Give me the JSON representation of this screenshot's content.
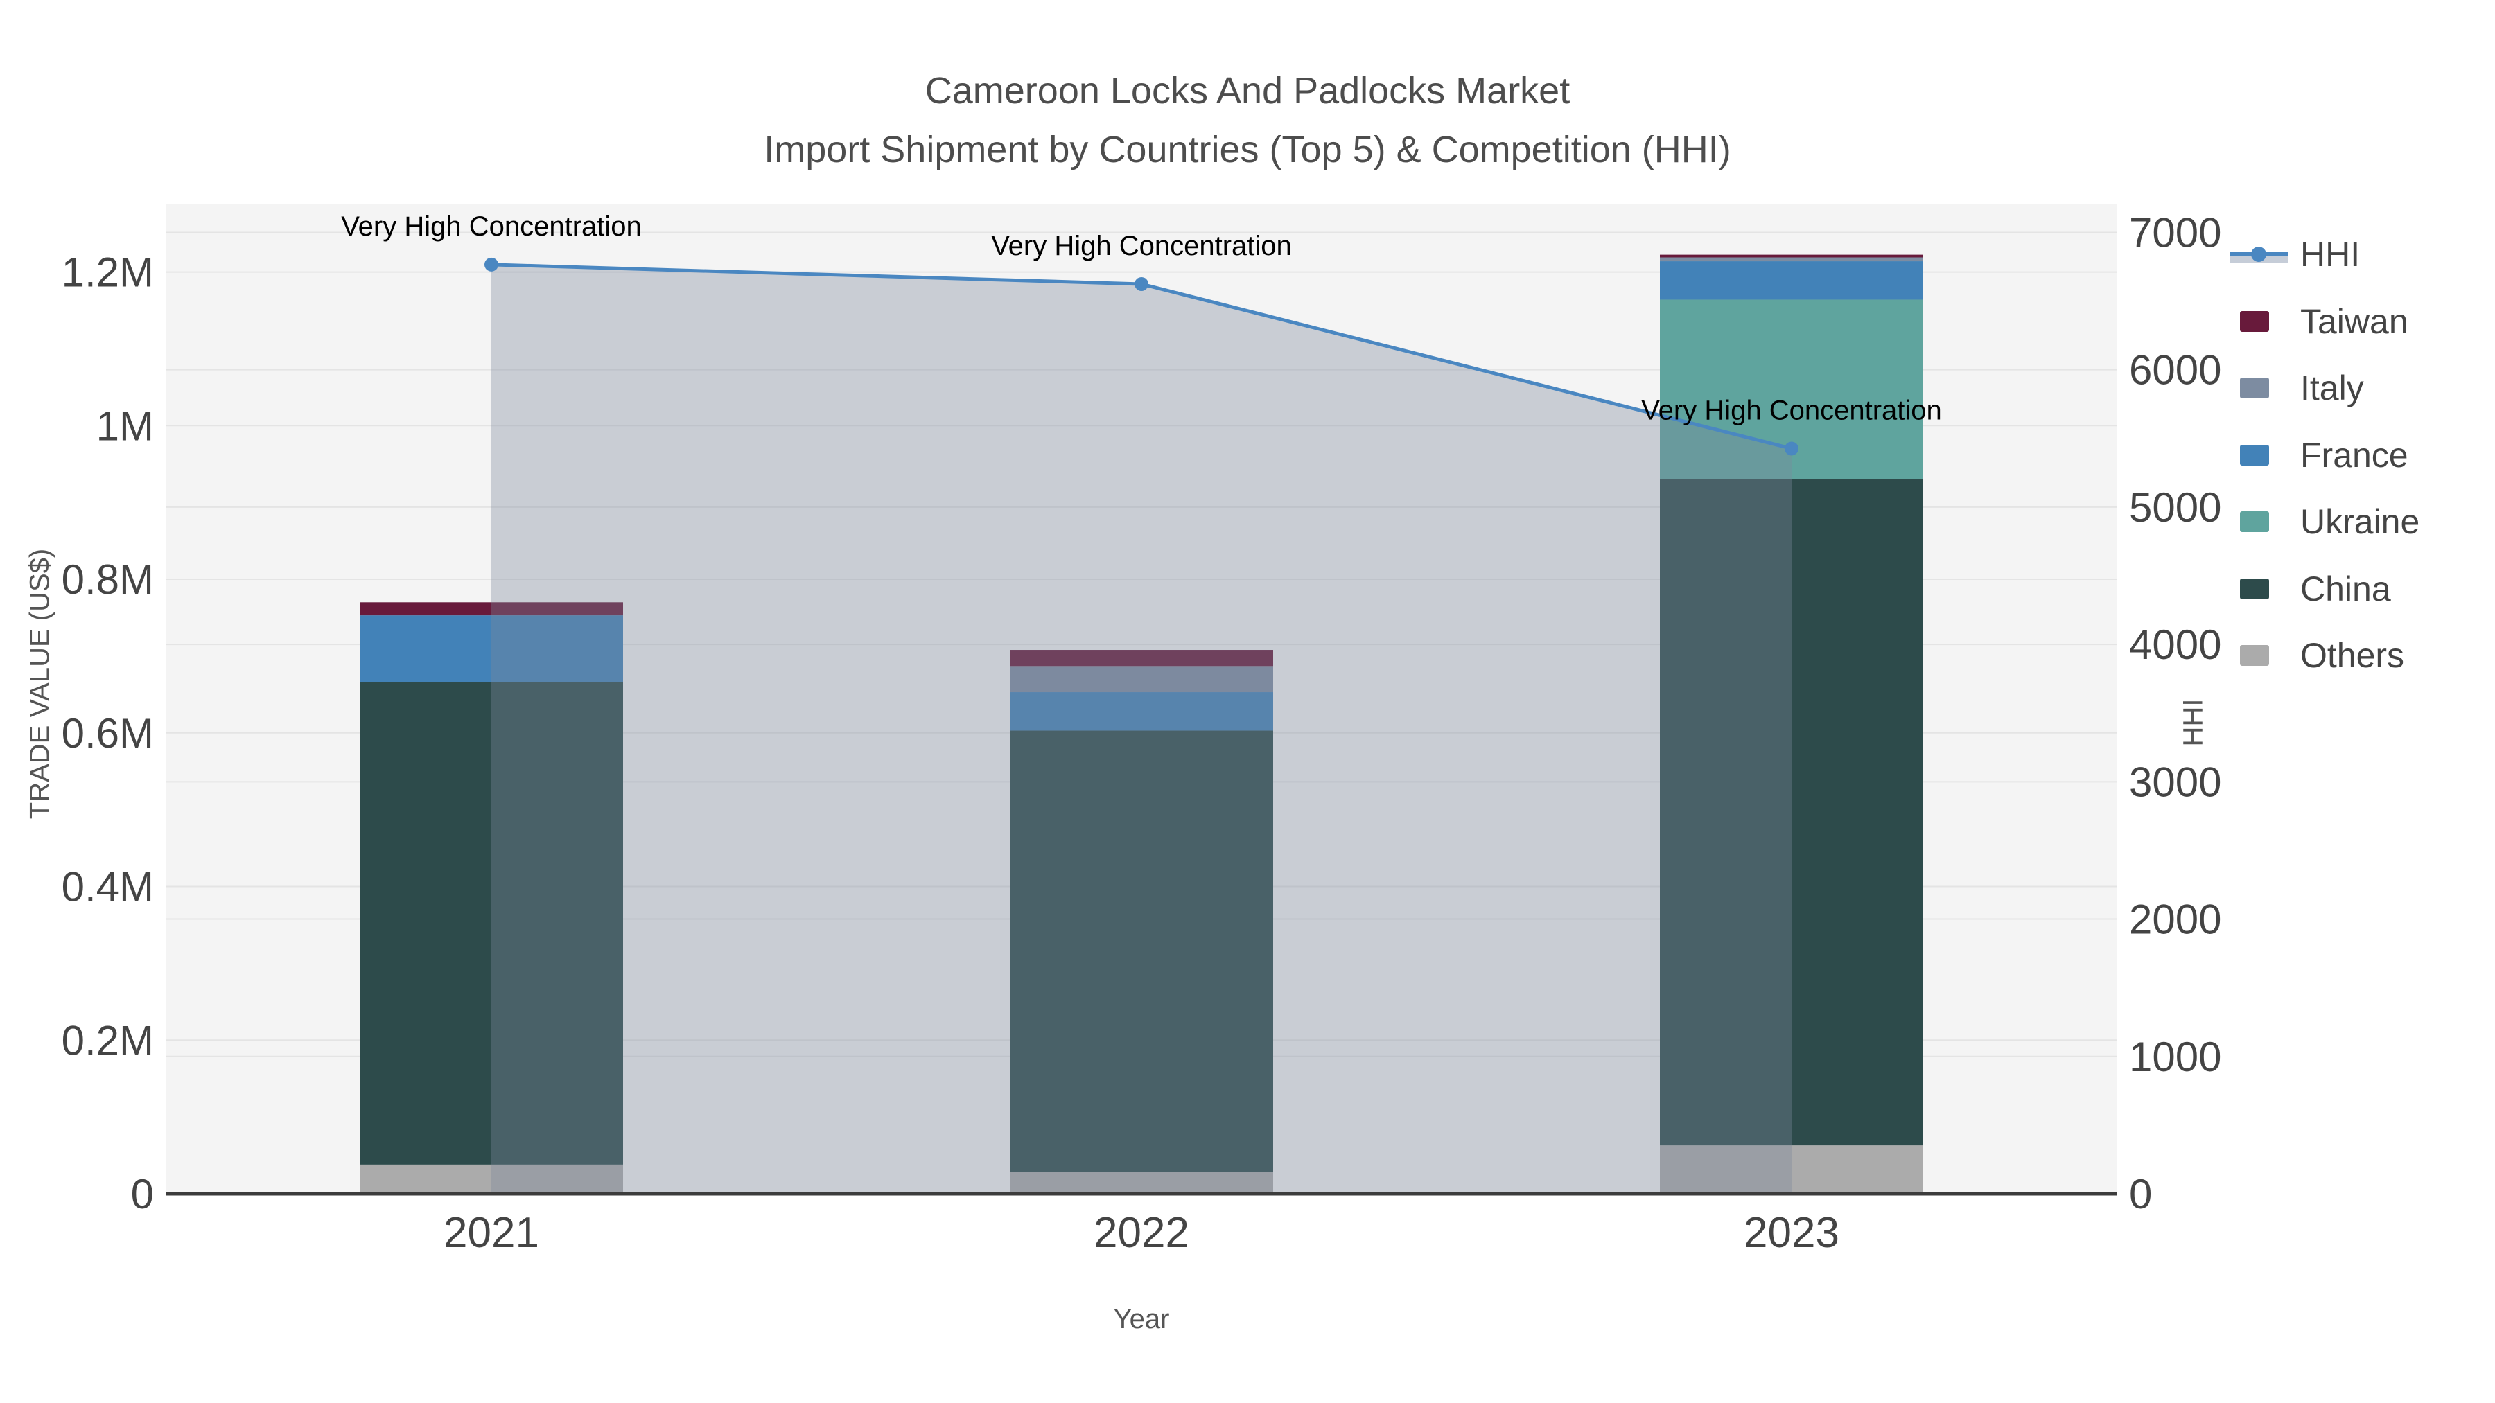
{
  "title": {
    "line1": "Cameroon Locks And Padlocks Market",
    "line2": "Import Shipment by Countries (Top 5) & Competition (HHI)"
  },
  "colors": {
    "page_bg": "#ffffff",
    "plot_bg": "#f4f4f4",
    "grid": "#e4e4e4",
    "axis_line": "#3c3c3c",
    "tick_text": "#444444",
    "title_text": "#4d4d4d",
    "axis_title_text": "#555555",
    "annotation_text": "#000000",
    "hhi_line": "#4a87c1",
    "hhi_area_fill": "rgba(125,136,156,0.36)",
    "hhi_legend_band": "#c6cdd8"
  },
  "chart_data": {
    "type": "bar+line",
    "subtype": "stacked bars (left axis) with HHI line+area (right axis)",
    "categories": [
      "2021",
      "2022",
      "2023"
    ],
    "bar_series": [
      {
        "name": "Others",
        "color": "#ababab",
        "values": [
          38000,
          28000,
          63000
        ]
      },
      {
        "name": "China",
        "color": "#2d4b4b",
        "values": [
          628000,
          575000,
          867000
        ]
      },
      {
        "name": "Ukraine",
        "color": "#5fa49e",
        "values": [
          0,
          0,
          234000
        ]
      },
      {
        "name": "France",
        "color": "#4282b8",
        "values": [
          87000,
          50000,
          50000
        ]
      },
      {
        "name": "Italy",
        "color": "#7d8ca1",
        "values": [
          0,
          34000,
          5000
        ]
      },
      {
        "name": "Taiwan",
        "color": "#681a3b",
        "values": [
          17000,
          21000,
          3500
        ]
      }
    ],
    "line_series": {
      "name": "HHI",
      "color": "#4a87c1",
      "values": [
        6766,
        6624,
        5426
      ]
    },
    "annotations": [
      {
        "text": "Very High Concentration",
        "category_index": 0
      },
      {
        "text": "Very High Concentration",
        "category_index": 1
      },
      {
        "text": "Very High Concentration",
        "category_index": 2
      }
    ],
    "axes": {
      "x": {
        "title": "Year"
      },
      "y_left": {
        "title": "TRADE VALUE (US$)",
        "range": [
          0,
          1288000
        ],
        "ticks": [
          {
            "v": 0,
            "label": "0"
          },
          {
            "v": 200000,
            "label": "0.2M"
          },
          {
            "v": 400000,
            "label": "0.4M"
          },
          {
            "v": 600000,
            "label": "0.6M"
          },
          {
            "v": 800000,
            "label": "0.8M"
          },
          {
            "v": 1000000,
            "label": "1M"
          },
          {
            "v": 1200000,
            "label": "1.2M"
          }
        ]
      },
      "y_right": {
        "title": "HHI",
        "range": [
          0,
          7204
        ],
        "ticks": [
          {
            "v": 0,
            "label": "0"
          },
          {
            "v": 1000,
            "label": "1000"
          },
          {
            "v": 2000,
            "label": "2000"
          },
          {
            "v": 3000,
            "label": "3000"
          },
          {
            "v": 4000,
            "label": "4000"
          },
          {
            "v": 5000,
            "label": "5000"
          },
          {
            "v": 6000,
            "label": "6000"
          },
          {
            "v": 7000,
            "label": "7000"
          }
        ]
      }
    },
    "legend": [
      {
        "label": "HHI",
        "type": "line",
        "color": "#4a87c1",
        "band": "#c6cdd8"
      },
      {
        "label": "Taiwan",
        "type": "swatch",
        "color": "#681a3b"
      },
      {
        "label": "Italy",
        "type": "swatch",
        "color": "#7d8ca1"
      },
      {
        "label": "France",
        "type": "swatch",
        "color": "#4282b8"
      },
      {
        "label": "Ukraine",
        "type": "swatch",
        "color": "#5fa49e"
      },
      {
        "label": "China",
        "type": "swatch",
        "color": "#2d4b4b"
      },
      {
        "label": "Others",
        "type": "swatch",
        "color": "#ababab"
      }
    ]
  }
}
